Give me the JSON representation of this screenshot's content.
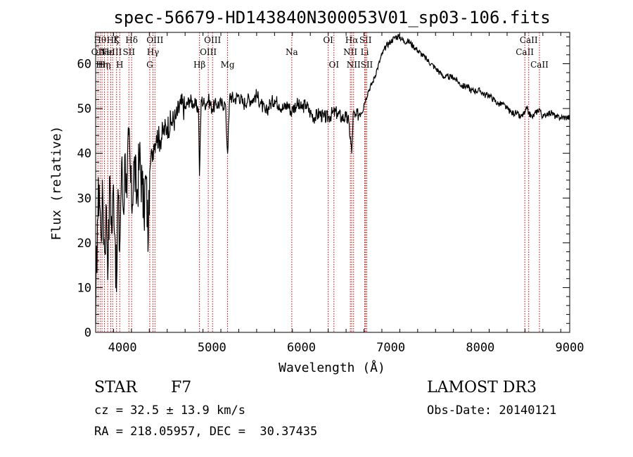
{
  "chart_data": {
    "type": "line",
    "title": "spec-56679-HD143840N300053V01_sp03-106.fits",
    "xlabel": "Wavelength (Å)",
    "ylabel": "Flux (relative)",
    "xlim": [
      3700,
      9000
    ],
    "ylim": [
      0,
      67
    ],
    "x_ticks": [
      4000,
      5000,
      6000,
      7000,
      8000,
      9000
    ],
    "y_ticks": [
      0,
      10,
      20,
      30,
      40,
      50,
      60
    ],
    "x_minor_step": 200,
    "y_minor_step": 2,
    "line_color": "#000000",
    "marker_color": "#cc0000",
    "series": [
      {
        "name": "spectrum",
        "x": [
          3700,
          3720,
          3740,
          3760,
          3780,
          3800,
          3820,
          3840,
          3860,
          3880,
          3900,
          3920,
          3933,
          3950,
          3968,
          3990,
          4010,
          4030,
          4050,
          4070,
          4102,
          4130,
          4160,
          4190,
          4220,
          4240,
          4260,
          4290,
          4310,
          4330,
          4350,
          4380,
          4420,
          4460,
          4500,
          4550,
          4600,
          4650,
          4700,
          4750,
          4800,
          4850,
          4861,
          4880,
          4920,
          4960,
          5000,
          5050,
          5100,
          5150,
          5175,
          5200,
          5250,
          5300,
          5350,
          5400,
          5450,
          5500,
          5550,
          5600,
          5650,
          5700,
          5750,
          5800,
          5850,
          5893,
          5900,
          5950,
          6000,
          6050,
          6100,
          6150,
          6200,
          6250,
          6300,
          6350,
          6400,
          6450,
          6500,
          6530,
          6563,
          6580,
          6600,
          6650,
          6700,
          6750,
          6800,
          6850,
          6900,
          6950,
          7000,
          7050,
          7100,
          7150,
          7200,
          7250,
          7300,
          7350,
          7400,
          7450,
          7500,
          7550,
          7600,
          7650,
          7700,
          7750,
          7800,
          7850,
          7900,
          7950,
          8000,
          8050,
          8100,
          8150,
          8200,
          8250,
          8300,
          8350,
          8400,
          8450,
          8498,
          8520,
          8542,
          8580,
          8620,
          8662,
          8700,
          8750,
          8800,
          8850,
          8900,
          8950,
          9000
        ],
        "y": [
          2,
          25,
          33,
          22,
          30,
          18,
          28,
          15,
          35,
          22,
          33,
          20,
          9,
          32,
          18,
          38,
          27,
          40,
          30,
          44,
          28,
          38,
          30,
          39,
          33,
          26,
          35,
          21,
          37,
          40,
          42,
          44,
          43,
          45,
          46,
          47,
          48,
          51,
          50,
          52,
          51,
          50,
          35,
          52,
          51,
          52,
          50,
          51,
          51,
          51,
          40,
          53,
          52,
          53,
          51,
          52,
          52,
          53,
          51,
          49,
          51,
          52,
          51,
          50,
          51,
          49,
          50,
          51,
          50,
          51,
          49,
          48,
          49,
          48,
          48,
          49,
          49,
          48,
          48,
          47,
          40,
          49,
          48,
          49,
          51,
          54,
          56,
          59,
          62,
          64,
          65,
          66,
          66,
          65,
          65,
          64,
          63,
          62,
          61,
          60,
          59,
          58,
          57,
          57,
          57,
          56,
          55,
          55,
          54,
          54,
          54,
          53,
          53,
          52,
          51,
          51,
          50,
          49,
          49,
          48,
          49,
          50,
          49,
          48,
          49,
          50,
          48,
          49,
          49,
          48,
          48,
          48,
          48
        ]
      }
    ],
    "lines_markers": [
      {
        "x": 3726,
        "label": "OII",
        "row": 2
      },
      {
        "x": 3750,
        "label": "Hθ",
        "row": 1
      },
      {
        "x": 3771,
        "label": "Hη",
        "row": 3
      },
      {
        "x": 3798,
        "label": "Hη",
        "row": 3
      },
      {
        "x": 3835,
        "label": "Hε",
        "row": 2
      },
      {
        "x": 3869,
        "label": "NeIII",
        "row": 2
      },
      {
        "x": 3890,
        "label": "Hζ",
        "row": 1
      },
      {
        "x": 3934,
        "label": "K",
        "row": 1
      },
      {
        "x": 3969,
        "label": "H",
        "row": 3
      },
      {
        "x": 4072,
        "label": "SII",
        "row": 2
      },
      {
        "x": 4102,
        "label": "Hδ",
        "row": 1
      },
      {
        "x": 4305,
        "label": "G",
        "row": 3
      },
      {
        "x": 4341,
        "label": "Hγ",
        "row": 2
      },
      {
        "x": 4363,
        "label": "OIII",
        "row": 1
      },
      {
        "x": 4861,
        "label": "Hβ",
        "row": 3
      },
      {
        "x": 4959,
        "label": "OIII",
        "row": 2
      },
      {
        "x": 5007,
        "label": "OIII",
        "row": 1
      },
      {
        "x": 5175,
        "label": "Mg",
        "row": 3
      },
      {
        "x": 5893,
        "label": "Na",
        "row": 2
      },
      {
        "x": 6300,
        "label": "OI",
        "row": 1
      },
      {
        "x": 6364,
        "label": "OI",
        "row": 3
      },
      {
        "x": 6548,
        "label": "NII",
        "row": 2
      },
      {
        "x": 6563,
        "label": "Hα",
        "row": 1
      },
      {
        "x": 6584,
        "label": "NII",
        "row": 3
      },
      {
        "x": 6708,
        "label": "Li",
        "row": 2
      },
      {
        "x": 6717,
        "label": "SII",
        "row": 1
      },
      {
        "x": 6731,
        "label": "SII",
        "row": 3
      },
      {
        "x": 8498,
        "label": "CaII",
        "row": 2
      },
      {
        "x": 8542,
        "label": "CaII",
        "row": 1
      },
      {
        "x": 8662,
        "label": "CaII",
        "row": 3
      }
    ]
  },
  "info": {
    "object_type": "STAR",
    "subclass": "F7",
    "survey": "LAMOST DR3",
    "redshift": "cz = 32.5 ± 13.9 km/s",
    "obs_date": "Obs-Date: 20140121",
    "coords": "RA = 218.05957, DEC =  30.37435"
  }
}
